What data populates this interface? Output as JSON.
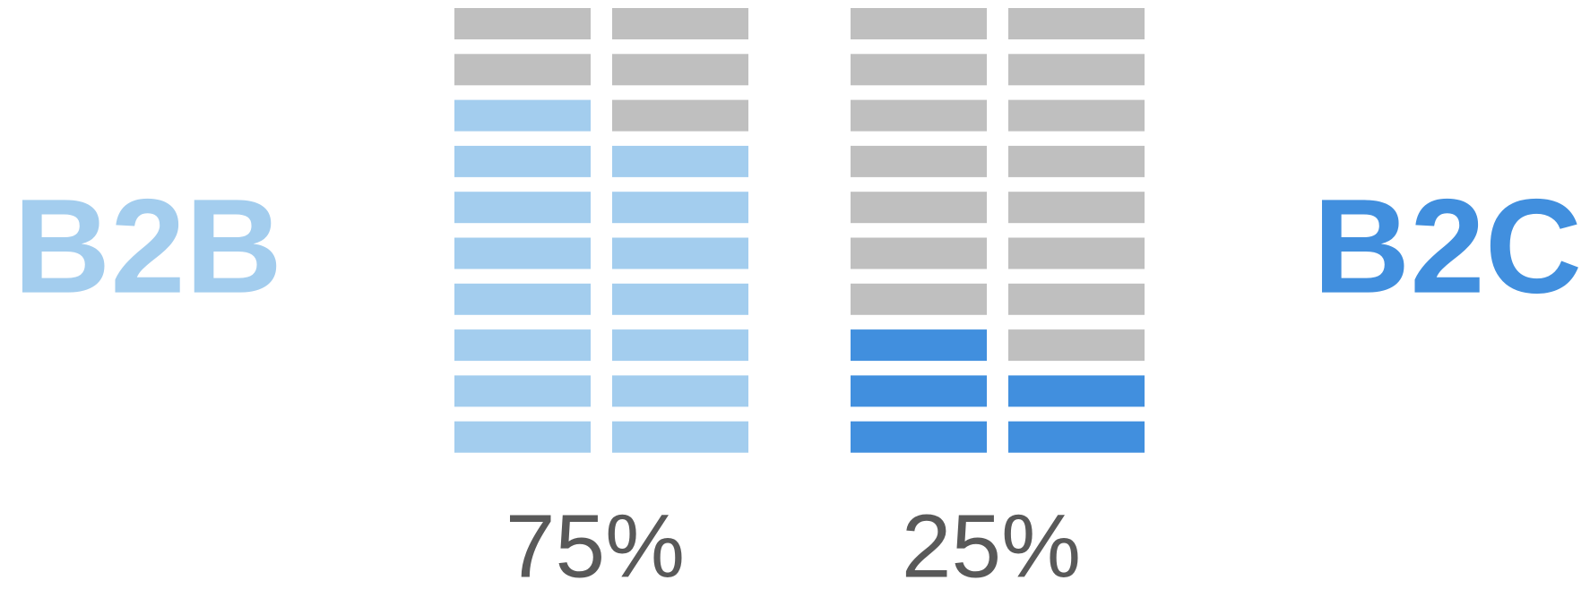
{
  "chart_data": {
    "type": "waffle",
    "series": [
      {
        "name": "B2B",
        "color": "#a3cdee",
        "values": [
          75
        ],
        "value_labels": [
          "75%"
        ]
      },
      {
        "name": "B2C",
        "color": "#418fde",
        "values": [
          25
        ],
        "value_labels": [
          "25%"
        ]
      }
    ],
    "empty_color": "#bfbfbf",
    "ylim": [
      0,
      100
    ]
  }
}
